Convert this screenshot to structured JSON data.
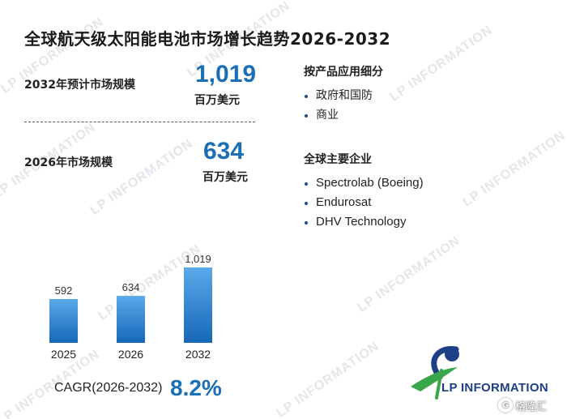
{
  "title": "全球航天级太阳能电池市场增长趋势2026-2032",
  "stats": {
    "forecast_label": "2032年预计市场规模",
    "forecast_value": "1,019",
    "forecast_unit": "百万美元",
    "base_label": "2026年市场规模",
    "base_value": "634",
    "base_unit": "百万美元"
  },
  "segments": {
    "heading": "按产品应用细分",
    "items": [
      "政府和国防",
      "商业"
    ]
  },
  "companies": {
    "heading": "全球主要企业",
    "items": [
      "Spectrolab (Boeing)",
      "Endurosat",
      "DHV Technology"
    ]
  },
  "cagr": {
    "label": "CAGR(2026-2032)",
    "value": "8.2%"
  },
  "logo": {
    "text": "LP INFORMATION",
    "watermark_text": "LP INFORMATION"
  },
  "corner_badge": {
    "text": "格隆汇",
    "icon": "g-circle-icon"
  },
  "colors": {
    "accent": "#1b6fb5",
    "bar_top": "#5aa9ea",
    "bar_bottom": "#1668b8",
    "logo_blue": "#1e3f86",
    "logo_green": "#3aa64a"
  },
  "chart_data": {
    "type": "bar",
    "categories": [
      "2025",
      "2026",
      "2032"
    ],
    "values": [
      592,
      634,
      1019
    ],
    "value_labels": [
      "592",
      "634",
      "1,019"
    ],
    "title": "",
    "xlabel": "",
    "ylabel": "",
    "ylim": [
      0,
      1019
    ],
    "grid": false,
    "legend": "none"
  }
}
